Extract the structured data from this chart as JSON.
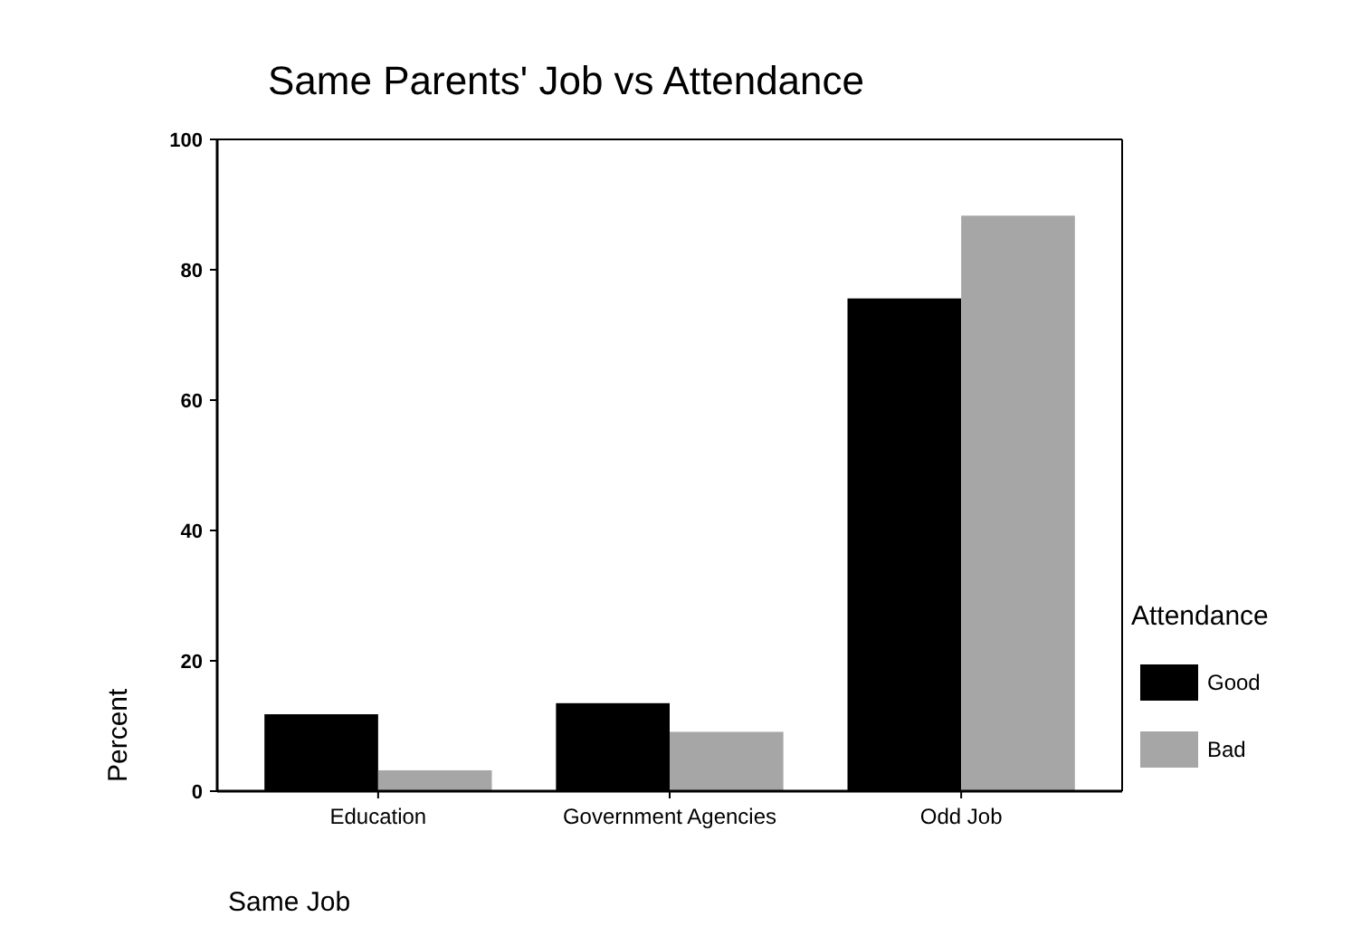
{
  "chart_data": {
    "type": "bar",
    "title": "Same Parents' Job vs Attendance",
    "xlabel": "Same Job",
    "ylabel": "Percent",
    "legend_title": "Attendance",
    "categories": [
      "Education",
      "Government Agencies",
      "Odd Job"
    ],
    "series": [
      {
        "name": "Good",
        "color": "#000000",
        "values": [
          11.8,
          13.5,
          75.6
        ]
      },
      {
        "name": "Bad",
        "color": "#a6a6a6",
        "values": [
          3.2,
          9.1,
          88.3
        ]
      }
    ],
    "ylim": [
      0,
      100
    ],
    "yticks": [
      0,
      20,
      40,
      60,
      80,
      100
    ],
    "grid": false,
    "legend": "right"
  }
}
